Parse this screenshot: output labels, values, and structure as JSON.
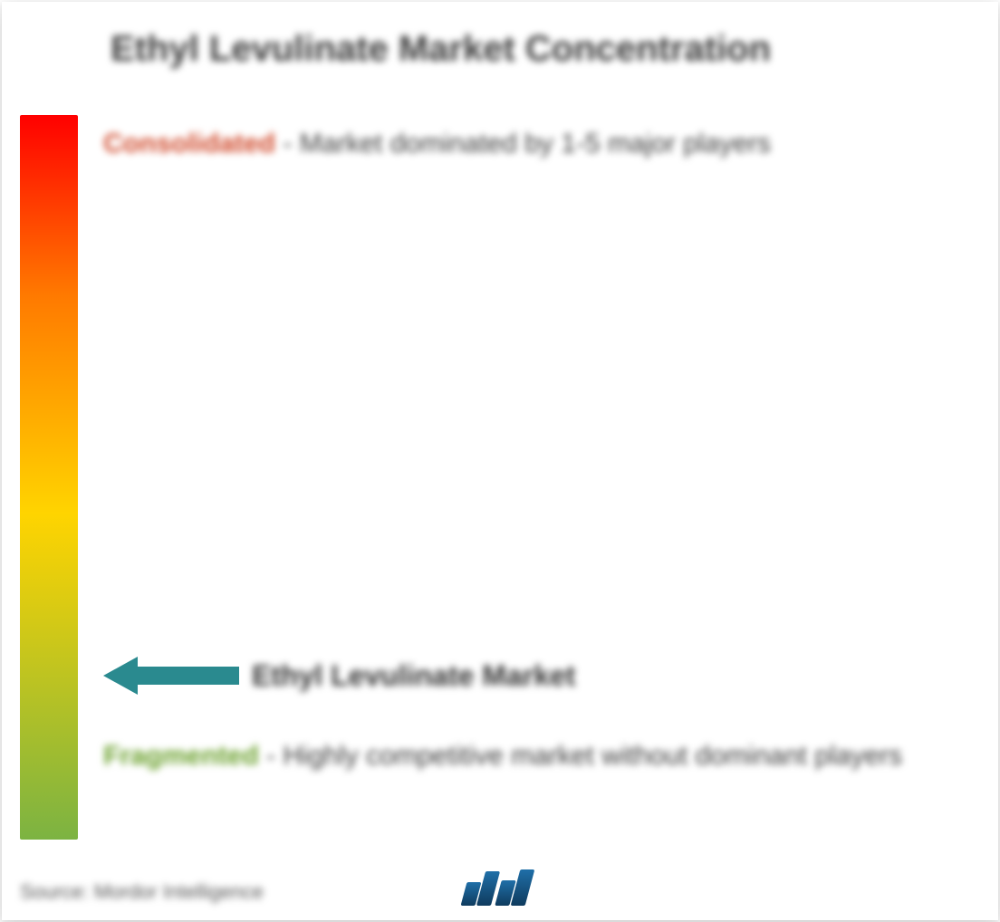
{
  "title": "Ethyl Levulinate Market Concentration",
  "gradient": {
    "top_color": "#ff0000",
    "mid1_color": "#ff7a00",
    "mid2_color": "#ffd400",
    "bottom_color": "#7cb342"
  },
  "consolidated": {
    "label": "Consolidated",
    "label_color": "#d04a2c",
    "text": "- Market dominated by 1-5 major players"
  },
  "fragmented": {
    "label": "Fragmented",
    "label_color": "#6aa02c",
    "text": "- Highly competitive market without dominant players"
  },
  "arrow": {
    "label": "Ethyl Levulinate Market",
    "color": "#2a8a8f",
    "position_percent": 77
  },
  "source": "Source: Mordor Intelligence",
  "logo_bar_heights": [
    26,
    38,
    28,
    40
  ]
}
